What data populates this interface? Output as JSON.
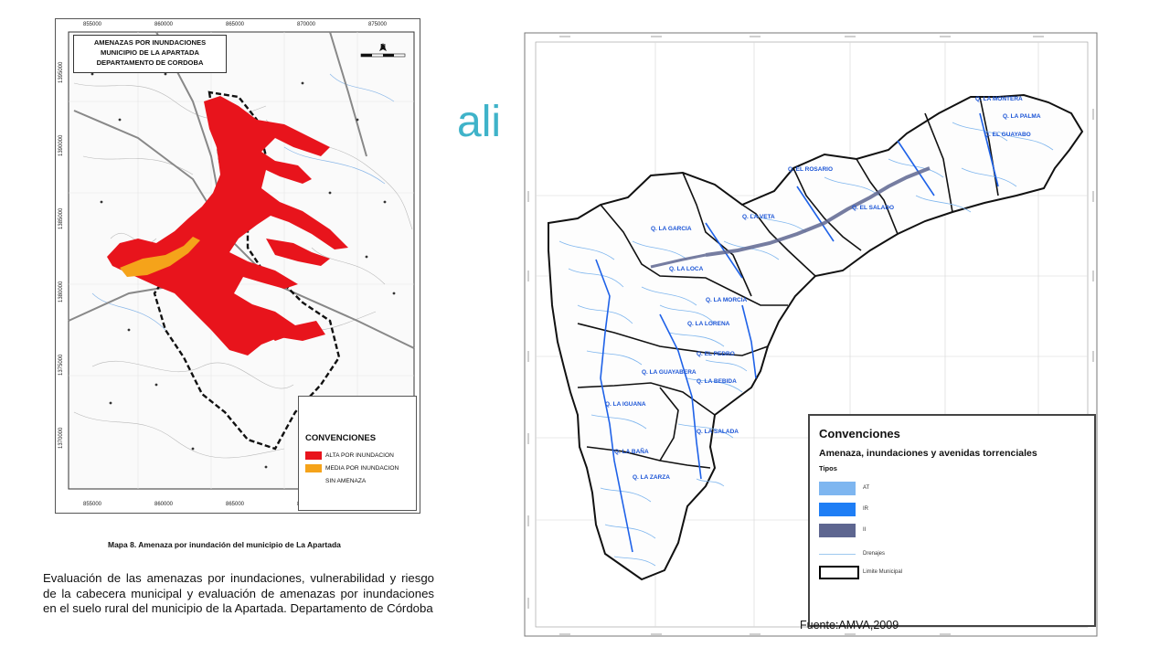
{
  "slide": {
    "heading_fragment": "ali"
  },
  "map_left": {
    "title_lines": [
      "AMENAZAS POR INUNDACIONES",
      "MUNICIPIO DE LA APARTADA",
      "DEPARTAMENTO DE CORDOBA"
    ],
    "top_ticks": [
      "855000",
      "860000",
      "865000",
      "870000",
      "875000"
    ],
    "bottom_ticks": [
      "855000",
      "860000",
      "865000",
      "870000",
      "875000"
    ],
    "side_ticks": [
      "1395000",
      "1390000",
      "1385000",
      "1380000",
      "1375000",
      "1370000"
    ],
    "north_label": "N",
    "legend": {
      "title": "CONVENCIONES",
      "items": [
        {
          "label": "ALTA POR INUNDACION",
          "color": "#e8141c"
        },
        {
          "label": "MEDIA POR INUNDACION",
          "color": "#f5a31a"
        },
        {
          "label": "SIN AMENAZA",
          "color": "#ffffff"
        }
      ]
    },
    "caption": "Mapa 8. Amenaza por inundación del municipio de La Apartada"
  },
  "description": "Evaluación de las amenazas por inundaciones, vulnerabilidad y riesgo de la cabecera municipal y evaluación de amenazas por inundaciones en el suelo rural del municipio de la Apartada. Departamento de Córdoba",
  "map_right": {
    "legend": {
      "title": "Convenciones",
      "subtitle": "Amenaza, inundaciones y avenidas torrenciales",
      "types_label": "Tipos",
      "items": [
        {
          "label": "AT",
          "color": "#7eb6f0"
        },
        {
          "label": "IR",
          "color": "#1f7ef5"
        },
        {
          "label": "II",
          "color": "#5e6690"
        },
        {
          "label": "Drenajes",
          "color": "#9ec9ef"
        },
        {
          "label": "Limite Municipal",
          "color": "#000000"
        }
      ]
    },
    "stream_labels": [
      "Q. LA MONTERA",
      "Q. LA PALMA",
      "Q. EL GUAYABO",
      "Q. LA GARCIA",
      "Q. LA VETA",
      "Q. EL ROSARIO",
      "Q. LA LOCA",
      "Q. LA MORCIA",
      "Q. LA LORENA",
      "Q. EL PEDRO",
      "Q. LA GUAYABERA",
      "Q. LA BEBIDA",
      "Q. LA BAÑA",
      "Q. LA ZARZA",
      "Q. EL SALADO",
      "Q. LA IGUANA",
      "Q. LA SALADA"
    ],
    "source": "Fuente:AMVA,2009"
  },
  "colors": {
    "flood_high": "#e8141c",
    "flood_medium": "#f5a31a",
    "accent_heading": "#3fb3c9",
    "stream_blue": "#1a54d6"
  }
}
